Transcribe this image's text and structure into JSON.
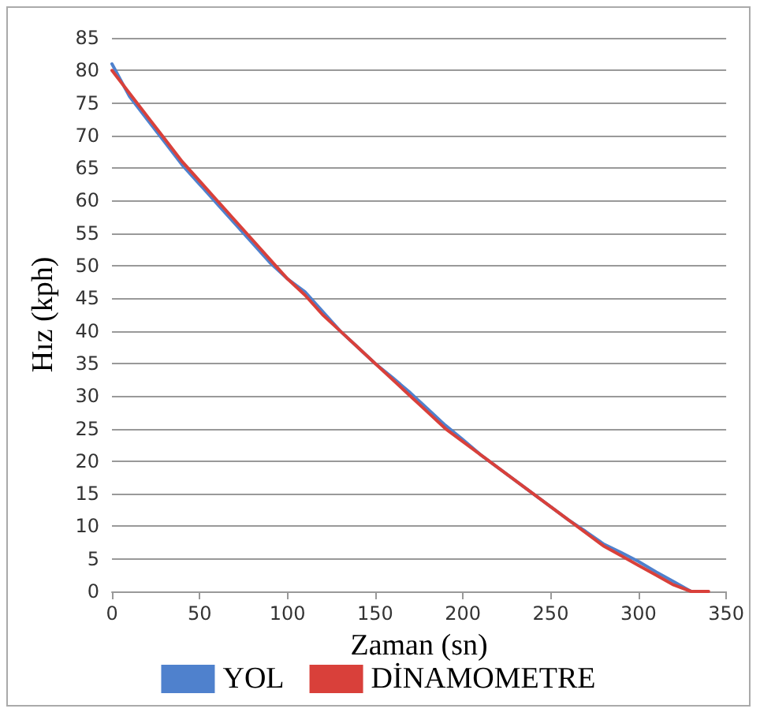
{
  "chart_data": {
    "type": "line",
    "xlabel": "Zaman (sn)",
    "ylabel": "Hız (kph)",
    "xlim": [
      0,
      350
    ],
    "xticks": [
      0,
      50,
      100,
      150,
      200,
      250,
      300,
      350
    ],
    "ylim": [
      0,
      85
    ],
    "yticks": [
      0,
      5,
      10,
      15,
      20,
      25,
      30,
      35,
      40,
      45,
      50,
      55,
      60,
      65,
      70,
      75,
      80,
      85
    ],
    "grid": "y",
    "legend": "bottom",
    "marker": "none",
    "line_style": "solid",
    "series": [
      {
        "name": "YOL",
        "color": "#4f81cd",
        "x": [
          0,
          10,
          20,
          30,
          40,
          50,
          60,
          70,
          80,
          90,
          100,
          110,
          120,
          130,
          140,
          150,
          160,
          170,
          180,
          190,
          200,
          210,
          220,
          230,
          240,
          250,
          260,
          270,
          280,
          290,
          300,
          310,
          320,
          330
        ],
        "values": [
          81,
          76,
          72.5,
          69,
          65.5,
          62.5,
          59.5,
          56.5,
          53.5,
          50.5,
          48,
          46,
          43,
          40,
          37.5,
          35,
          32.8,
          30.5,
          28,
          25.5,
          23.3,
          21,
          19,
          17,
          15,
          13,
          11,
          9.2,
          7.3,
          6,
          4.6,
          3,
          1.5,
          0
        ]
      },
      {
        "name": "DİNAMOMETRE",
        "color": "#d9403a",
        "x": [
          0,
          10,
          20,
          30,
          40,
          50,
          60,
          70,
          80,
          90,
          100,
          110,
          120,
          130,
          140,
          150,
          160,
          170,
          180,
          190,
          200,
          210,
          220,
          230,
          240,
          250,
          260,
          270,
          280,
          290,
          300,
          310,
          320,
          330,
          340
        ],
        "values": [
          80,
          76.5,
          73,
          69.5,
          66,
          63,
          60,
          57,
          54,
          51,
          48,
          45.5,
          42.5,
          40,
          37.5,
          35,
          32.5,
          30,
          27.5,
          25,
          23,
          21,
          19,
          17,
          15,
          13,
          11,
          9,
          7,
          5.5,
          4,
          2.5,
          1,
          0,
          0
        ]
      }
    ]
  }
}
